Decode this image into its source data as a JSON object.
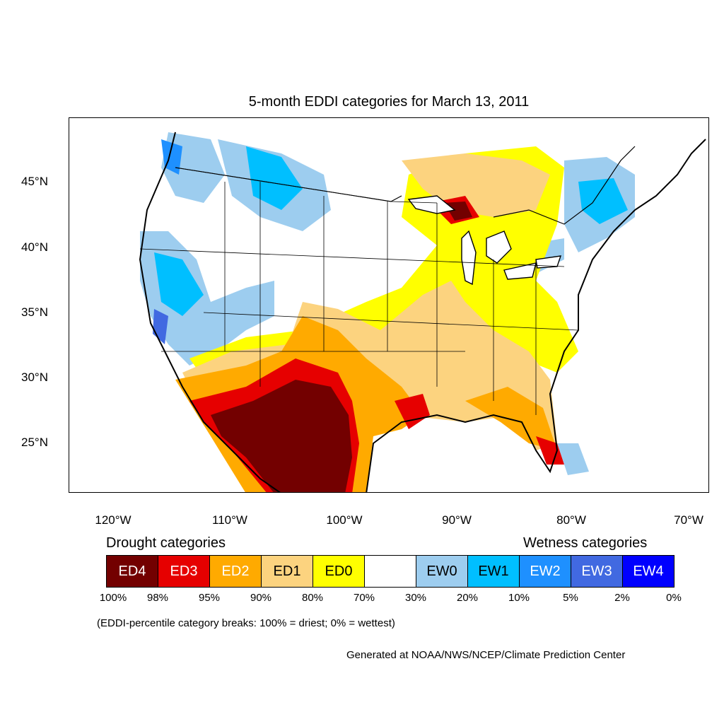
{
  "title": "5-month EDDI categories for March 13, 2011",
  "lat_labels": [
    "45°N",
    "40°N",
    "35°N",
    "30°N",
    "25°N"
  ],
  "lon_labels": [
    "120°W",
    "110°W",
    "100°W",
    "90°W",
    "80°W",
    "70°W"
  ],
  "legend": {
    "drought_heading": "Drought categories",
    "wetness_heading": "Wetness categories",
    "categories": [
      {
        "label": "ED4",
        "color": "#730000",
        "text_color": "#ffffff"
      },
      {
        "label": "ED3",
        "color": "#e60000",
        "text_color": "#ffffff"
      },
      {
        "label": "ED2",
        "color": "#ffaa00",
        "text_color": "#ffffff"
      },
      {
        "label": "ED1",
        "color": "#fcd37f",
        "text_color": "#000000"
      },
      {
        "label": "ED0",
        "color": "#ffff00",
        "text_color": "#000000"
      },
      {
        "label": "",
        "color": "#ffffff",
        "text_color": "#000000"
      },
      {
        "label": "EW0",
        "color": "#9dcdef",
        "text_color": "#000000"
      },
      {
        "label": "EW1",
        "color": "#00bfff",
        "text_color": "#000000"
      },
      {
        "label": "EW2",
        "color": "#1e90ff",
        "text_color": "#ffffff"
      },
      {
        "label": "EW3",
        "color": "#4169e1",
        "text_color": "#ffffff"
      },
      {
        "label": "EW4",
        "color": "#0000ff",
        "text_color": "#ffffff"
      }
    ],
    "percentiles": [
      "100%",
      "98%",
      "95%",
      "90%",
      "80%",
      "70%",
      "30%",
      "20%",
      "10%",
      "5%",
      "2%",
      "0%"
    ]
  },
  "note": "(EDDI-percentile category breaks: 100% = driest; 0% = wettest)",
  "credit": "Generated at NOAA/NWS/NCEP/Climate Prediction Center"
}
